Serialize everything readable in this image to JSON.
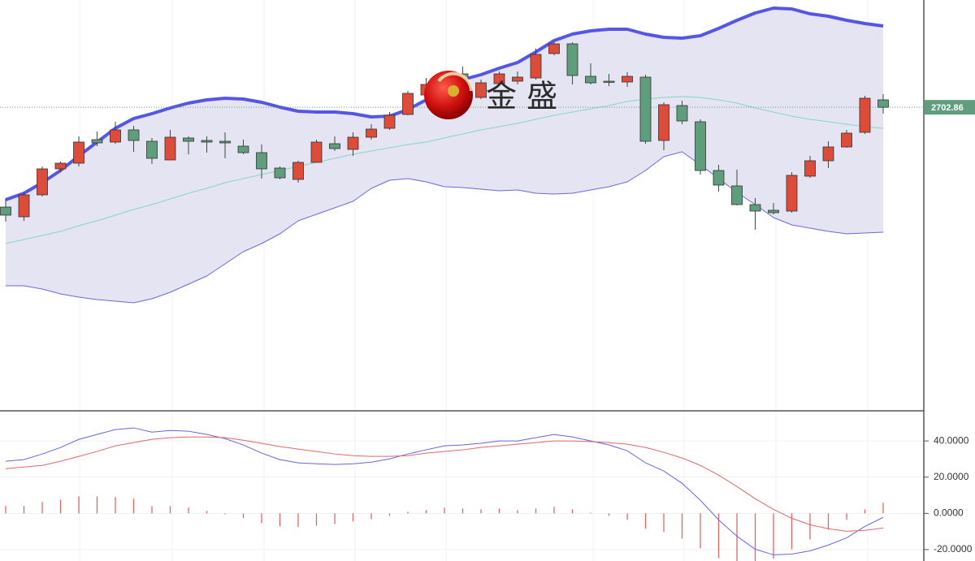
{
  "chart_data": [
    {
      "type": "candlestick",
      "watermark": "金 盛",
      "ylim": [
        2330,
        2835
      ],
      "last_price": 2702.86,
      "up_color": "#dd4b39",
      "down_color": "#5f9e7c",
      "open": [
        2580,
        2568,
        2595,
        2627,
        2634,
        2663,
        2660,
        2675,
        2661,
        2638,
        2665,
        2662,
        2661,
        2655,
        2647,
        2628,
        2614,
        2635,
        2658,
        2651,
        2666,
        2677,
        2694,
        2718,
        2731,
        2744,
        2715,
        2732,
        2735,
        2739,
        2769,
        2781,
        2741,
        2735,
        2734,
        2740,
        2662,
        2705,
        2685,
        2625,
        2606,
        2583,
        2576,
        2575,
        2618,
        2637,
        2654,
        2672,
        2712
      ],
      "high": [
        2590,
        2598,
        2630,
        2636,
        2667,
        2673,
        2685,
        2680,
        2665,
        2675,
        2667,
        2667,
        2672,
        2663,
        2657,
        2630,
        2637,
        2663,
        2667,
        2672,
        2682,
        2697,
        2723,
        2739,
        2747,
        2753,
        2737,
        2747,
        2747,
        2775,
        2783,
        2783,
        2757,
        2744,
        2746,
        2743,
        2709,
        2711,
        2688,
        2632,
        2626,
        2591,
        2585,
        2623,
        2643,
        2661,
        2675,
        2717,
        2719
      ],
      "low": [
        2562,
        2563,
        2593,
        2623,
        2630,
        2655,
        2658,
        2648,
        2633,
        2638,
        2645,
        2647,
        2640,
        2645,
        2615,
        2614,
        2610,
        2635,
        2649,
        2643,
        2663,
        2675,
        2693,
        2715,
        2727,
        2713,
        2713,
        2730,
        2731,
        2737,
        2767,
        2731,
        2731,
        2729,
        2728,
        2658,
        2650,
        2682,
        2620,
        2599,
        2582,
        2552,
        2571,
        2573,
        2616,
        2628,
        2653,
        2670,
        2695
      ],
      "close": [
        2570,
        2595,
        2627,
        2634,
        2660,
        2659,
        2675,
        2662,
        2640,
        2666,
        2661,
        2660,
        2659,
        2647,
        2627,
        2616,
        2635,
        2660,
        2652,
        2666,
        2676,
        2693,
        2720,
        2731,
        2743,
        2715,
        2733,
        2744,
        2740,
        2768,
        2781,
        2742,
        2733,
        2734,
        2741,
        2661,
        2706,
        2686,
        2625,
        2607,
        2583,
        2575,
        2573,
        2619,
        2637,
        2654,
        2671,
        2714,
        2702.86
      ],
      "bands": {
        "fill_color": "#e4e4f2",
        "upper": {
          "color": "#5656e6",
          "values": [
            2589,
            2597,
            2610,
            2625,
            2643,
            2660,
            2677,
            2689,
            2695,
            2702,
            2708,
            2712,
            2714,
            2713,
            2709,
            2703,
            2698,
            2697,
            2697,
            2695,
            2691,
            2692,
            2700,
            2712,
            2725,
            2737,
            2743,
            2751,
            2758,
            2771,
            2785,
            2793,
            2797,
            2799,
            2799,
            2793,
            2789,
            2788,
            2791,
            2800,
            2810,
            2819,
            2825,
            2824,
            2818,
            2815,
            2810,
            2806,
            2803
          ]
        },
        "middle": {
          "color": "#86d6c2",
          "values": [
            2535,
            2540,
            2545,
            2550,
            2557,
            2563,
            2570,
            2577,
            2583,
            2590,
            2597,
            2603,
            2610,
            2615,
            2620,
            2625,
            2630,
            2635,
            2640,
            2645,
            2649,
            2653,
            2657,
            2660,
            2665,
            2670,
            2675,
            2679,
            2683,
            2688,
            2693,
            2697,
            2701,
            2705,
            2710,
            2713,
            2715,
            2716,
            2715,
            2712,
            2708,
            2702,
            2697,
            2692,
            2688,
            2685,
            2682,
            2679,
            2677
          ]
        },
        "lower": {
          "color": "#6a6ad8",
          "values": [
            2483,
            2483,
            2479,
            2473,
            2469,
            2466,
            2464,
            2462,
            2467,
            2475,
            2485,
            2495,
            2510,
            2525,
            2535,
            2547,
            2563,
            2571,
            2579,
            2587,
            2603,
            2613,
            2615,
            2611,
            2605,
            2604,
            2602,
            2600,
            2601,
            2597,
            2596,
            2597,
            2601,
            2605,
            2611,
            2625,
            2642,
            2648,
            2632,
            2615,
            2598,
            2583,
            2567,
            2558,
            2554,
            2550,
            2547,
            2548,
            2549
          ]
        }
      }
    },
    {
      "type": "macd",
      "ylim": [
        -26.3,
        56.2
      ],
      "yticks": [
        {
          "value": 40,
          "label": "40.0000"
        },
        {
          "value": 20,
          "label": "20.0000"
        },
        {
          "value": 0,
          "label": "0.0000"
        },
        {
          "value": -20,
          "label": "-20.0000"
        }
      ],
      "series": [
        {
          "color": "#6666dd",
          "values": [
            28.8,
            29.7,
            32.8,
            36.4,
            40.9,
            43.6,
            46.3,
            47.2,
            44.9,
            45.8,
            45.4,
            43.6,
            41.3,
            37.8,
            33.3,
            29.7,
            27.9,
            27.4,
            27.0,
            27.4,
            28.3,
            30.1,
            32.8,
            35.1,
            37.3,
            37.8,
            38.7,
            40.0,
            40.0,
            41.8,
            43.6,
            42.2,
            40.0,
            37.8,
            34.6,
            27.9,
            23.4,
            16.6,
            7.2,
            -3.6,
            -12.6,
            -19.8,
            -22.9,
            -22.5,
            -20.7,
            -17.5,
            -13.5,
            -7.2,
            -2.2
          ]
        },
        {
          "color": "#e06666",
          "values": [
            24.7,
            25.6,
            26.5,
            28.8,
            31.5,
            34.2,
            37.3,
            39.1,
            40.9,
            41.8,
            42.2,
            42.2,
            41.8,
            40.4,
            38.7,
            36.9,
            35.5,
            34.2,
            32.8,
            31.9,
            31.5,
            31.5,
            31.9,
            33.3,
            34.2,
            35.1,
            36.4,
            37.3,
            38.2,
            39.1,
            40.0,
            40.0,
            39.6,
            39.1,
            38.2,
            36.4,
            33.7,
            30.6,
            26.5,
            21.1,
            14.8,
            8.1,
            2.2,
            -2.7,
            -6.3,
            -8.5,
            -9.9,
            -9.4,
            -8.1
          ]
        }
      ],
      "histogram": {
        "color": "#e06666",
        "values": [
          4.1,
          4.1,
          6.3,
          7.6,
          9.4,
          9.4,
          9.0,
          8.1,
          4.0,
          4.0,
          3.2,
          1.4,
          -0.5,
          -2.6,
          -5.4,
          -7.2,
          -7.6,
          -6.8,
          -5.8,
          -4.5,
          -3.2,
          -1.4,
          0.9,
          1.8,
          3.1,
          2.7,
          2.3,
          2.7,
          1.8,
          2.7,
          3.6,
          2.2,
          0.4,
          -1.3,
          -3.6,
          -8.5,
          -10.3,
          -14.0,
          -19.3,
          -24.7,
          -27.4,
          -27.9,
          -25.1,
          -19.8,
          -14.4,
          -9.0,
          -3.6,
          2.2,
          5.9
        ]
      }
    }
  ]
}
